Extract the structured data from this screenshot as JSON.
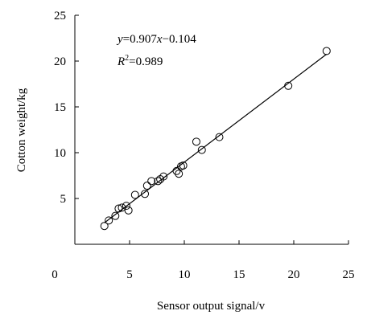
{
  "chart_data": {
    "type": "scatter",
    "xlabel": "Sensor output signal/v",
    "ylabel": "Cotton weight/kg",
    "xlim": [
      0,
      25
    ],
    "ylim": [
      0,
      25
    ],
    "x_ticks": [
      "0",
      "5",
      "10",
      "15",
      "20",
      "25"
    ],
    "y_ticks": [
      "5",
      "10",
      "15",
      "20",
      "25"
    ],
    "grid": false,
    "marker": "open-circle",
    "points": [
      [
        2.7,
        2.0
      ],
      [
        3.1,
        2.6
      ],
      [
        3.7,
        3.1
      ],
      [
        4.0,
        3.9
      ],
      [
        4.3,
        4.0
      ],
      [
        4.7,
        4.2
      ],
      [
        4.9,
        3.7
      ],
      [
        5.5,
        5.4
      ],
      [
        6.4,
        5.5
      ],
      [
        6.6,
        6.4
      ],
      [
        7.0,
        6.9
      ],
      [
        7.6,
        6.9
      ],
      [
        7.8,
        7.1
      ],
      [
        8.1,
        7.4
      ],
      [
        9.3,
        8.0
      ],
      [
        9.5,
        7.7
      ],
      [
        9.7,
        8.5
      ],
      [
        9.9,
        8.6
      ],
      [
        11.1,
        11.2
      ],
      [
        11.6,
        10.3
      ],
      [
        13.2,
        11.7
      ],
      [
        19.5,
        17.3
      ],
      [
        23.0,
        21.1
      ]
    ],
    "fit": {
      "slope": 0.907,
      "intercept": -0.104,
      "x_range": [
        2.7,
        23.0
      ]
    },
    "annotations": {
      "equation": {
        "y": "y",
        "eq": "=0.907",
        "x": "x",
        "rest": "−0.104"
      },
      "r2": {
        "R": "R",
        "sup": "2",
        "rest": "=0.989"
      }
    }
  }
}
